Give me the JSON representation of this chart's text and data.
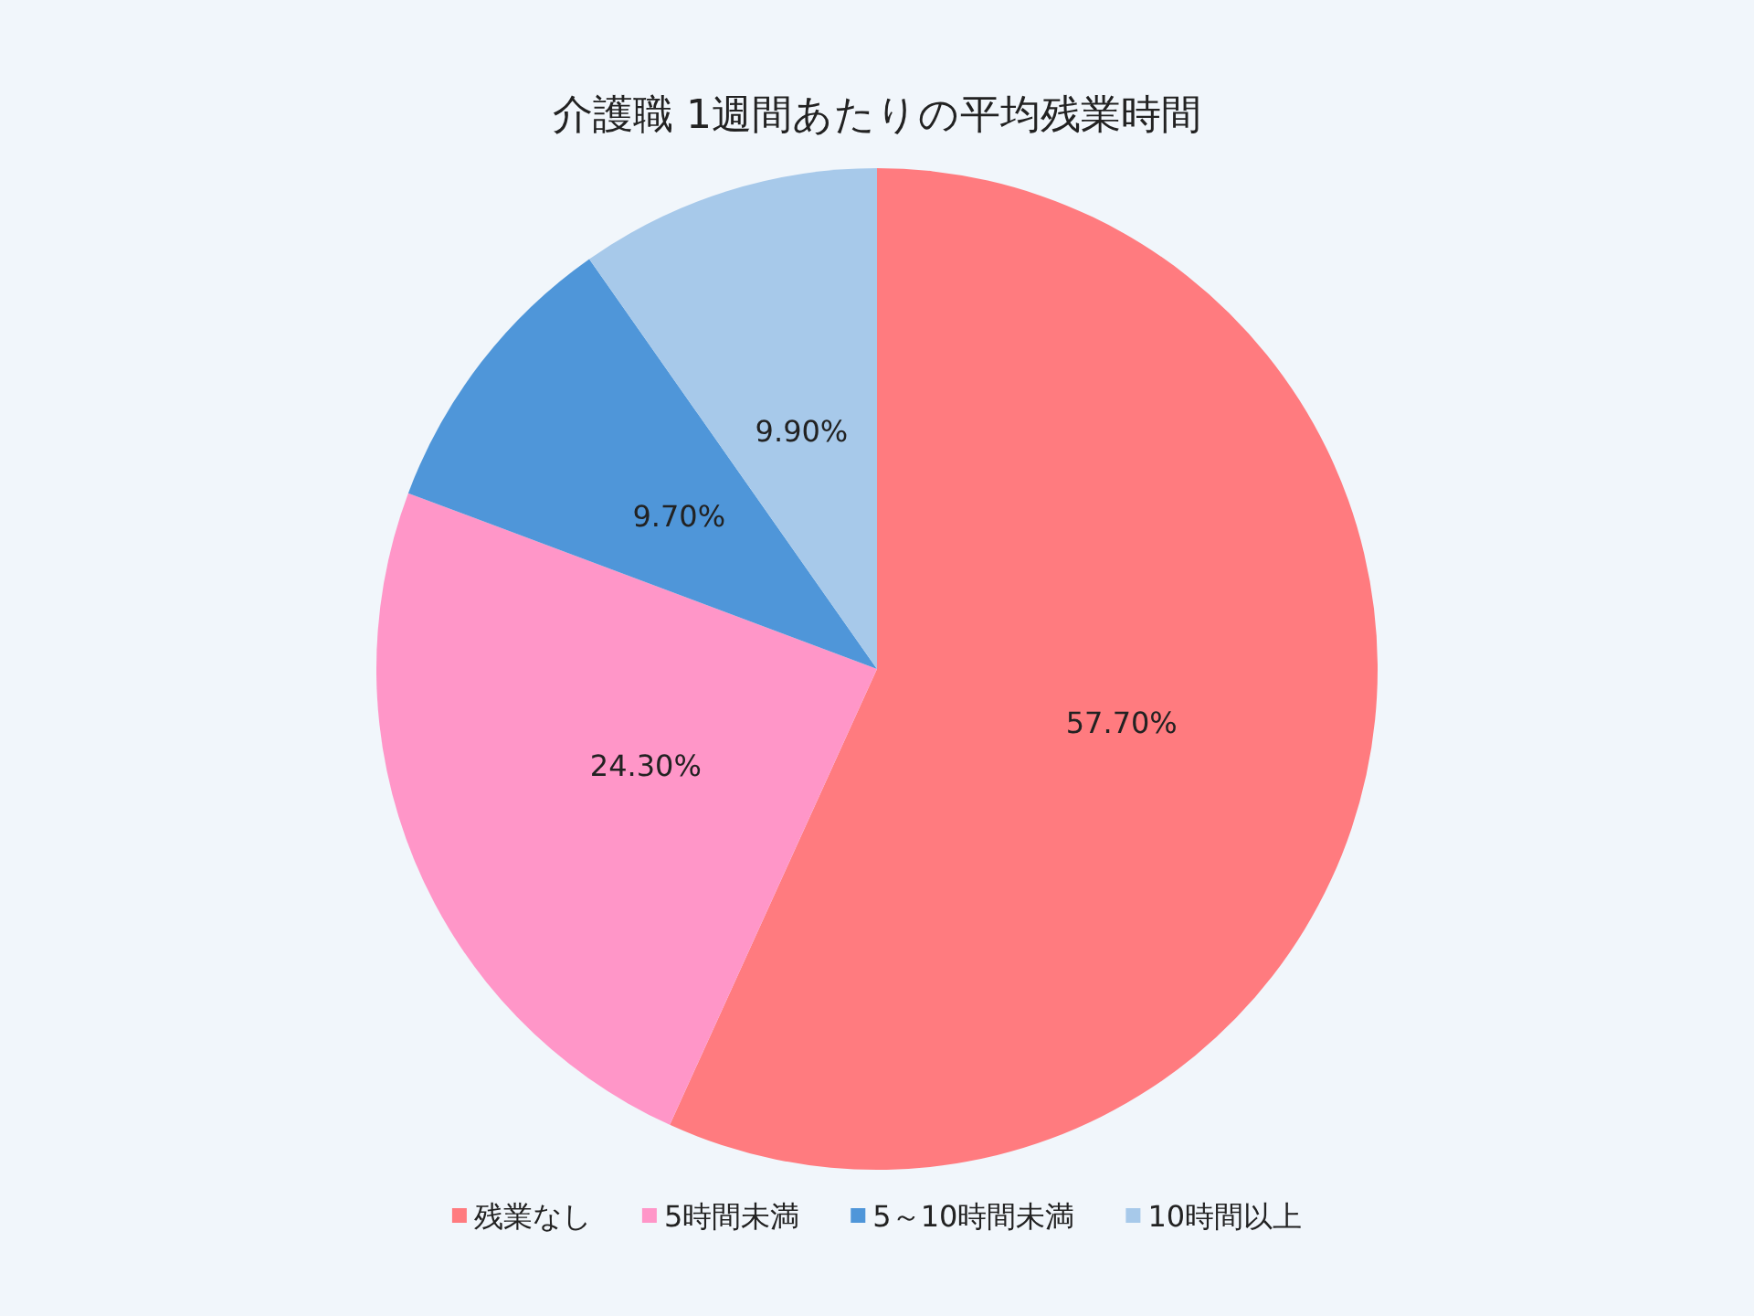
{
  "chart_data": {
    "type": "pie",
    "title": "介護職 1週間あたりの平均残業時間",
    "categories": [
      "残業なし",
      "5時間未満",
      "5～10時間未満",
      "10時間以上"
    ],
    "values": [
      57.7,
      24.3,
      9.7,
      9.9
    ],
    "value_labels": [
      "57.70%",
      "24.30%",
      "9.70%",
      "9.90%"
    ],
    "colors": [
      "#ff7b7f",
      "#ff96c8",
      "#4f96d9",
      "#a7c9ea"
    ],
    "legend": "bottom"
  }
}
